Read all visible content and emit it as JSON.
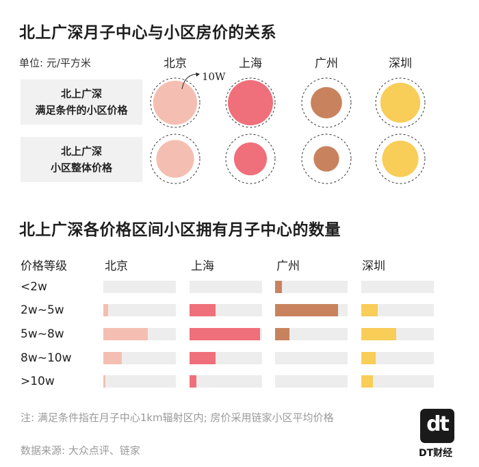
{
  "title1": "北上广深月子中心与小区房价的关系",
  "unit_label": "单位: 元/平方米",
  "scale_label": "10W",
  "cities": [
    "北京",
    "上海",
    "广州",
    "深圳"
  ],
  "city_colors": [
    "#f4bfb2",
    "#ef6f7a",
    "#c8835e",
    "#f8cd58"
  ],
  "row_labels": [
    [
      "北上广深",
      "满足条件的小区价格"
    ],
    [
      "北上广深",
      "小区整体价格"
    ]
  ],
  "chart_data": [
    {
      "type": "bubble",
      "title": "北上广深月子中心与小区房价的关系",
      "unit": "元/平方米",
      "reference": {
        "label": "10W",
        "value": 100000
      },
      "categories": [
        "北京",
        "上海",
        "广州",
        "深圳"
      ],
      "series": [
        {
          "name": "北上广深满足条件的小区价格",
          "values": [
            95000,
            100000,
            48000,
            78000
          ]
        },
        {
          "name": "北上广深小区整体价格",
          "values": [
            70000,
            53000,
            32000,
            65000
          ]
        }
      ]
    },
    {
      "type": "bar",
      "title": "北上广深各价格区间小区拥有月子中心的数量",
      "xlabel": "价格等级",
      "categories": [
        "<2w",
        "2w~5w",
        "5w~8w",
        "8w~10w",
        ">10w"
      ],
      "series": [
        {
          "name": "北京",
          "values": [
            0,
            2,
            19,
            8,
            1
          ]
        },
        {
          "name": "上海",
          "values": [
            0,
            11,
            30,
            11,
            3
          ]
        },
        {
          "name": "广州",
          "values": [
            3,
            27,
            6,
            0,
            0
          ]
        },
        {
          "name": "深圳",
          "values": [
            0,
            7,
            15,
            6,
            5
          ]
        }
      ],
      "xlim": [
        0,
        31
      ]
    }
  ],
  "title2": "北上广深各价格区间小区拥有月子中心的数量",
  "grade_header": "价格等级",
  "note": "注: 满足条件指在月子中心1km辐射区内; 房价采用链家小区平均价格",
  "source": "数据来源: 大众点评、链家",
  "logo_mark": "dt",
  "logo_text": "DT财经"
}
